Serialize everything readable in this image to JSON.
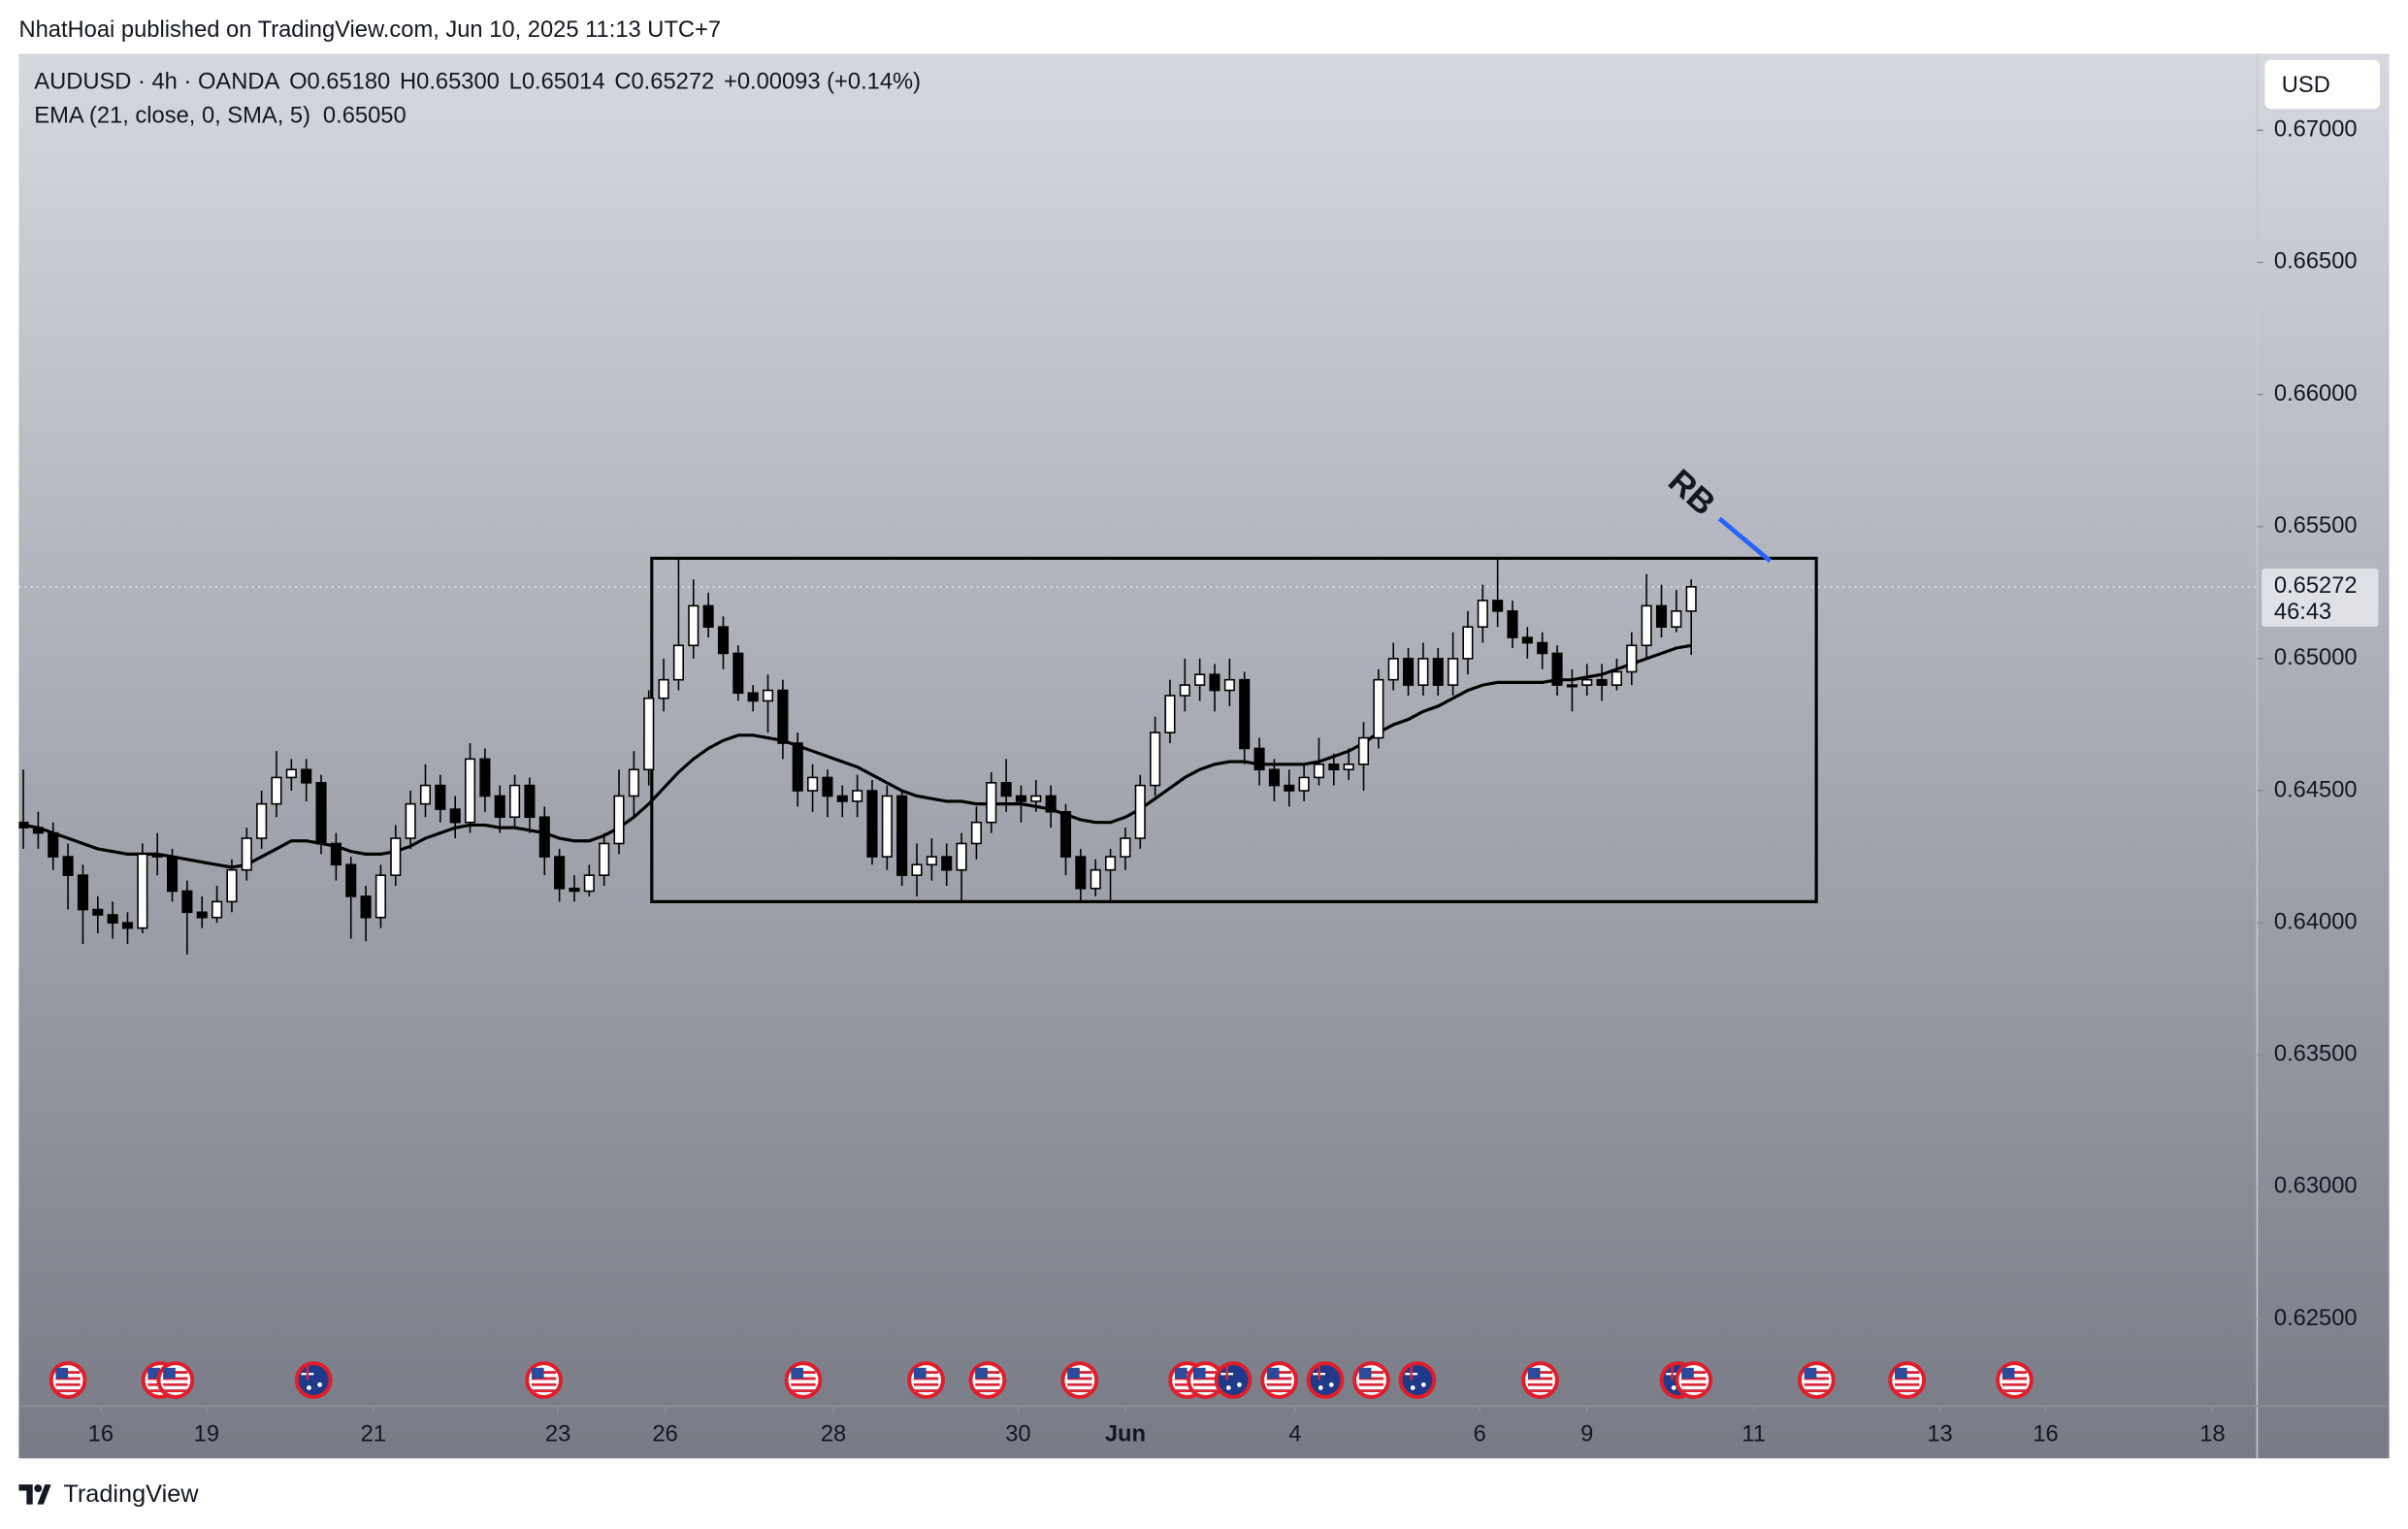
{
  "header": {
    "publisher": "NhatHoai published on TradingView.com, Jun 10, 2025 11:13 UTC+7"
  },
  "chart_data": {
    "type": "candlestick",
    "legend": {
      "symbol": "AUDUSD · 4h · OANDA",
      "open": "O0.65180",
      "high": "H0.65300",
      "low": "L0.65014",
      "close": "C0.65272",
      "change": "+0.00093 (+0.14%)"
    },
    "up_color": "#ffffff",
    "down_color": "#000000",
    "open": [
      0.6438,
      0.6436,
      0.6434,
      0.6425,
      0.6418,
      0.6405,
      0.6403,
      0.64,
      0.6398,
      0.6426,
      0.6425,
      0.6412,
      0.6404,
      0.6402,
      0.6408,
      0.642,
      0.6432,
      0.6445,
      0.6455,
      0.6458,
      0.6453,
      0.643,
      0.6422,
      0.641,
      0.6402,
      0.6418,
      0.6432,
      0.6445,
      0.6452,
      0.6443,
      0.6438,
      0.6462,
      0.6448,
      0.644,
      0.6452,
      0.644,
      0.6425,
      0.6413,
      0.6412,
      0.6418,
      0.643,
      0.6448,
      0.6458,
      0.6485,
      0.6492,
      0.6505,
      0.652,
      0.6512,
      0.6502,
      0.6487,
      0.6484,
      0.6488,
      0.6468,
      0.645,
      0.6455,
      0.6448,
      0.6446,
      0.645,
      0.6425,
      0.6448,
      0.6418,
      0.6422,
      0.6425,
      0.642,
      0.643,
      0.6438,
      0.6453,
      0.6448,
      0.6446,
      0.6448,
      0.6442,
      0.6425,
      0.6413,
      0.642,
      0.6425,
      0.6432,
      0.6452,
      0.6472,
      0.6486,
      0.649,
      0.6494,
      0.6488,
      0.6492,
      0.6466,
      0.6458,
      0.6452,
      0.645,
      0.6455,
      0.646,
      0.6458,
      0.646,
      0.647,
      0.6492,
      0.65,
      0.649,
      0.65,
      0.649,
      0.65,
      0.6512,
      0.6522,
      0.6518,
      0.6508,
      0.6506,
      0.6502,
      0.649,
      0.649,
      0.6492,
      0.649,
      0.6495,
      0.6505,
      0.652,
      0.6512,
      0.6518
    ],
    "high": [
      0.6458,
      0.6442,
      0.6438,
      0.643,
      0.6422,
      0.641,
      0.6408,
      0.6404,
      0.643,
      0.6434,
      0.6428,
      0.6416,
      0.641,
      0.6414,
      0.6424,
      0.6436,
      0.645,
      0.6465,
      0.6462,
      0.6462,
      0.6456,
      0.6434,
      0.6425,
      0.6414,
      0.6422,
      0.6437,
      0.645,
      0.646,
      0.6456,
      0.6448,
      0.6468,
      0.6466,
      0.6452,
      0.6456,
      0.6455,
      0.6444,
      0.6428,
      0.6418,
      0.6422,
      0.6434,
      0.6458,
      0.6465,
      0.6488,
      0.65,
      0.6538,
      0.653,
      0.6525,
      0.6516,
      0.6505,
      0.649,
      0.6494,
      0.6492,
      0.6472,
      0.646,
      0.6458,
      0.6452,
      0.6456,
      0.6454,
      0.6452,
      0.645,
      0.643,
      0.6432,
      0.643,
      0.6434,
      0.6444,
      0.6457,
      0.6462,
      0.6452,
      0.6454,
      0.6452,
      0.6445,
      0.6428,
      0.6424,
      0.6428,
      0.6436,
      0.6456,
      0.6478,
      0.6492,
      0.65,
      0.65,
      0.6498,
      0.65,
      0.6495,
      0.647,
      0.6462,
      0.6458,
      0.646,
      0.647,
      0.6464,
      0.6466,
      0.6476,
      0.6496,
      0.6506,
      0.6504,
      0.6506,
      0.6504,
      0.651,
      0.6518,
      0.6528,
      0.6538,
      0.6522,
      0.6512,
      0.651,
      0.6505,
      0.6496,
      0.6498,
      0.6498,
      0.65,
      0.651,
      0.6532,
      0.6528,
      0.6526,
      0.653
    ],
    "low": [
      0.6428,
      0.6428,
      0.642,
      0.6405,
      0.6392,
      0.6396,
      0.6394,
      0.6392,
      0.6396,
      0.6418,
      0.6408,
      0.6388,
      0.6398,
      0.64,
      0.6404,
      0.6416,
      0.6428,
      0.644,
      0.645,
      0.6446,
      0.6426,
      0.6416,
      0.6394,
      0.6393,
      0.6398,
      0.6414,
      0.6428,
      0.644,
      0.6438,
      0.6432,
      0.6434,
      0.6442,
      0.6434,
      0.6436,
      0.6434,
      0.6418,
      0.6408,
      0.6408,
      0.641,
      0.6414,
      0.6426,
      0.644,
      0.6452,
      0.648,
      0.6488,
      0.65,
      0.6508,
      0.6496,
      0.6484,
      0.648,
      0.6472,
      0.6462,
      0.6444,
      0.6442,
      0.644,
      0.644,
      0.644,
      0.6422,
      0.642,
      0.6414,
      0.641,
      0.6416,
      0.6414,
      0.6408,
      0.6424,
      0.6434,
      0.6442,
      0.6438,
      0.6442,
      0.6436,
      0.6418,
      0.6408,
      0.641,
      0.6408,
      0.642,
      0.6428,
      0.6448,
      0.6468,
      0.648,
      0.6484,
      0.648,
      0.6482,
      0.646,
      0.6452,
      0.6446,
      0.6444,
      0.6446,
      0.6452,
      0.6452,
      0.6454,
      0.645,
      0.6466,
      0.6488,
      0.6486,
      0.6486,
      0.6486,
      0.6486,
      0.6494,
      0.6506,
      0.6512,
      0.6504,
      0.65,
      0.6496,
      0.6486,
      0.648,
      0.6486,
      0.6484,
      0.6488,
      0.649,
      0.65,
      0.6508,
      0.651,
      0.65014
    ],
    "close": [
      0.6436,
      0.6434,
      0.6425,
      0.6418,
      0.6405,
      0.6403,
      0.64,
      0.6398,
      0.6426,
      0.6425,
      0.6412,
      0.6404,
      0.6402,
      0.6408,
      0.642,
      0.6432,
      0.6445,
      0.6455,
      0.6458,
      0.6453,
      0.643,
      0.6422,
      0.641,
      0.6402,
      0.6418,
      0.6432,
      0.6445,
      0.6452,
      0.6443,
      0.6438,
      0.6462,
      0.6448,
      0.644,
      0.6452,
      0.644,
      0.6425,
      0.6413,
      0.6412,
      0.6418,
      0.643,
      0.6448,
      0.6458,
      0.6485,
      0.6492,
      0.6505,
      0.652,
      0.6512,
      0.6502,
      0.6487,
      0.6484,
      0.6488,
      0.6468,
      0.645,
      0.6455,
      0.6448,
      0.6446,
      0.645,
      0.6425,
      0.6448,
      0.6418,
      0.6422,
      0.6425,
      0.642,
      0.643,
      0.6438,
      0.6453,
      0.6448,
      0.6446,
      0.6448,
      0.6442,
      0.6425,
      0.6413,
      0.642,
      0.6425,
      0.6432,
      0.6452,
      0.6472,
      0.6486,
      0.649,
      0.6494,
      0.6488,
      0.6492,
      0.6466,
      0.6458,
      0.6452,
      0.645,
      0.6455,
      0.646,
      0.6458,
      0.646,
      0.647,
      0.6492,
      0.65,
      0.649,
      0.65,
      0.649,
      0.65,
      0.6512,
      0.6522,
      0.6518,
      0.6508,
      0.6506,
      0.6502,
      0.649,
      0.649,
      0.6492,
      0.649,
      0.6495,
      0.6505,
      0.652,
      0.6512,
      0.6518,
      0.65272
    ],
    "ema": {
      "name": "EMA (21, close, 0, SMA, 5)",
      "value_label": "0.65050",
      "color": "#000000",
      "values": [
        0.6437,
        0.6436,
        0.6434,
        0.6432,
        0.643,
        0.6428,
        0.6427,
        0.6426,
        0.6426,
        0.6426,
        0.6425,
        0.6424,
        0.6423,
        0.6422,
        0.6421,
        0.6422,
        0.6425,
        0.6428,
        0.6431,
        0.6431,
        0.643,
        0.6429,
        0.6427,
        0.6426,
        0.6426,
        0.6427,
        0.6429,
        0.6432,
        0.6434,
        0.6436,
        0.6437,
        0.6437,
        0.6436,
        0.6436,
        0.6435,
        0.6434,
        0.6432,
        0.6431,
        0.6431,
        0.6433,
        0.6436,
        0.644,
        0.6445,
        0.6451,
        0.6457,
        0.6462,
        0.6466,
        0.6469,
        0.6471,
        0.6471,
        0.647,
        0.6469,
        0.6467,
        0.6465,
        0.6463,
        0.6461,
        0.6459,
        0.6456,
        0.6453,
        0.645,
        0.6448,
        0.6447,
        0.6446,
        0.6446,
        0.6445,
        0.6445,
        0.6445,
        0.6445,
        0.6444,
        0.6443,
        0.6441,
        0.6439,
        0.6438,
        0.6438,
        0.644,
        0.6443,
        0.6447,
        0.6451,
        0.6455,
        0.6458,
        0.646,
        0.6461,
        0.6461,
        0.646,
        0.646,
        0.646,
        0.646,
        0.6461,
        0.6463,
        0.6465,
        0.6468,
        0.6472,
        0.6475,
        0.6477,
        0.648,
        0.6482,
        0.6485,
        0.6488,
        0.649,
        0.6491,
        0.6491,
        0.6491,
        0.6491,
        0.6492,
        0.6492,
        0.6493,
        0.6494,
        0.6496,
        0.6498,
        0.65,
        0.6502,
        0.6504,
        0.6505
      ]
    },
    "xlim": [
      -0.3,
      150
    ],
    "xticks": [
      {
        "value": 5.2,
        "label": "16"
      },
      {
        "value": 12.3,
        "label": "19"
      },
      {
        "value": 23.5,
        "label": "21"
      },
      {
        "value": 35.9,
        "label": "23"
      },
      {
        "value": 43.1,
        "label": "26"
      },
      {
        "value": 54.4,
        "label": "28"
      },
      {
        "value": 66.8,
        "label": "30"
      },
      {
        "value": 74,
        "label": "Jun"
      },
      {
        "value": 85.4,
        "label": "4"
      },
      {
        "value": 97.8,
        "label": "6"
      },
      {
        "value": 105,
        "label": "9"
      },
      {
        "value": 116.2,
        "label": "11"
      },
      {
        "value": 128.7,
        "label": "13"
      },
      {
        "value": 135.8,
        "label": "16"
      },
      {
        "value": 147,
        "label": "18"
      }
    ],
    "ylim": [
      0.6217,
      0.6729
    ],
    "yticks": [
      {
        "value": 0.625,
        "label": "0.62500"
      },
      {
        "value": 0.63,
        "label": "0.63000"
      },
      {
        "value": 0.635,
        "label": "0.63500"
      },
      {
        "value": 0.64,
        "label": "0.64000"
      },
      {
        "value": 0.645,
        "label": "0.64500"
      },
      {
        "value": 0.65,
        "label": "0.65000"
      },
      {
        "value": 0.655,
        "label": "0.65500"
      },
      {
        "value": 0.66,
        "label": "0.66000"
      },
      {
        "value": 0.665,
        "label": "0.66500"
      },
      {
        "value": 0.67,
        "label": "0.67000"
      }
    ],
    "currency": "USD",
    "last_price_label": "0.65272",
    "countdown": "46:43",
    "annotations": {
      "rectangle": {
        "x0": 42.2,
        "x1": 120.4,
        "y0": 0.6408,
        "y1": 0.6538,
        "color": "#000000"
      },
      "label": "RB",
      "arrow": {
        "x0": 113.9,
        "y0": 0.6553,
        "x1": 117.3,
        "y1": 0.6537,
        "color": "#2962ff"
      }
    }
  },
  "footer": {
    "brand": "TradingView"
  }
}
